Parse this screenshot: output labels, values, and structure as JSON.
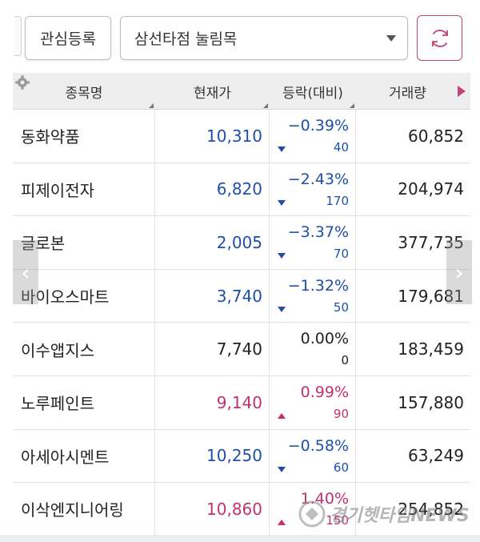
{
  "toolbar": {
    "favorite_button_label": "관심등록",
    "group_selected": "삼선타점 눌림목",
    "refresh_icon": "refresh-icon"
  },
  "header": {
    "settings_icon": "gear-icon",
    "columns": [
      "종목명",
      "현재가",
      "등락(대비)",
      "거래량"
    ],
    "next_icon": "play-right-icon"
  },
  "colors": {
    "down": "#1f4fa8",
    "up": "#c0306e",
    "flat": "#222222",
    "accent": "#c0437c"
  },
  "rows": [
    {
      "name": "동화약품",
      "price": "10,310",
      "pct": "−0.39%",
      "diff": "40",
      "dir": "down",
      "volume": "60,852"
    },
    {
      "name": "피제이전자",
      "price": "6,820",
      "pct": "−2.43%",
      "diff": "170",
      "dir": "down",
      "volume": "204,974"
    },
    {
      "name": "글로본",
      "price": "2,005",
      "pct": "−3.37%",
      "diff": "70",
      "dir": "down",
      "volume": "377,735"
    },
    {
      "name": "바이오스마트",
      "price": "3,740",
      "pct": "−1.32%",
      "diff": "50",
      "dir": "down",
      "volume": "179,681"
    },
    {
      "name": "이수앱지스",
      "price": "7,740",
      "pct": "0.00%",
      "diff": "0",
      "dir": "flat",
      "volume": "183,459"
    },
    {
      "name": "노루페인트",
      "price": "9,140",
      "pct": "0.99%",
      "diff": "90",
      "dir": "up",
      "volume": "157,880"
    },
    {
      "name": "아세아시멘트",
      "price": "10,250",
      "pct": "−0.58%",
      "diff": "60",
      "dir": "down",
      "volume": "63,249"
    },
    {
      "name": "이삭엔지니어링",
      "price": "10,860",
      "pct": "1.40%",
      "diff": "150",
      "dir": "up",
      "volume": "254,852"
    }
  ],
  "pager": {
    "left_icon": "chevron-left-icon",
    "right_icon": "chevron-right-icon"
  },
  "watermark": {
    "text": "경기헷타임NEWS"
  }
}
